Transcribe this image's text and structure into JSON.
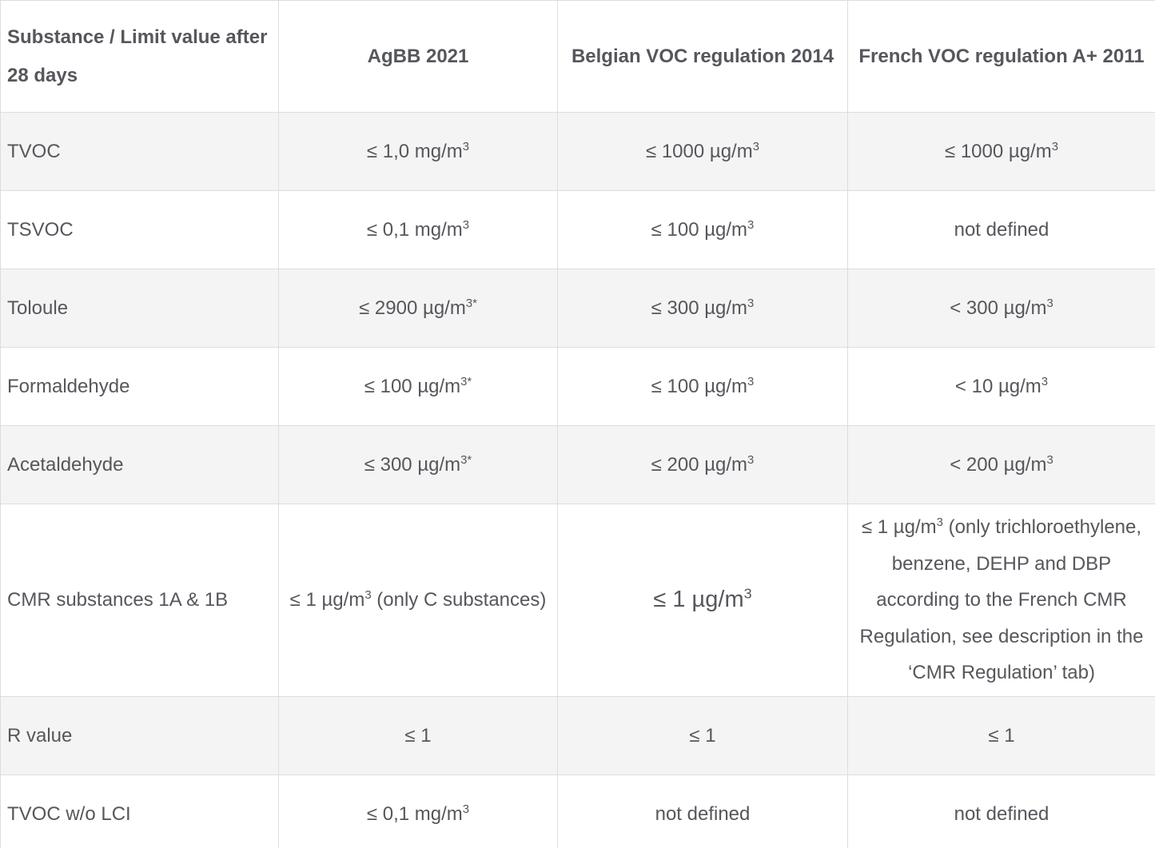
{
  "table": {
    "columns": [
      {
        "label": "Substance / Limit value after 28 days"
      },
      {
        "label": "AgBB 2021"
      },
      {
        "label": "Belgian VOC regulation 2014"
      },
      {
        "label": "French VOC regulation A+ 2011"
      }
    ],
    "rows": [
      {
        "substance": "TVOC",
        "agbb": "≤ 1,0 mg/m^{3}",
        "belgian": "≤ 1000 µg/m^{3}",
        "french": "≤ 1000 µg/m^{3}"
      },
      {
        "substance": "TSVOC",
        "agbb": "≤ 0,1 mg/m^{3}",
        "belgian": "≤ 100 µg/m^{3}",
        "french": "not defined"
      },
      {
        "substance": "Toloule",
        "agbb": "≤ 2900 µg/m^{3*}",
        "belgian": "≤ 300 µg/m^{3}",
        "french": "< 300 µg/m^{3}"
      },
      {
        "substance": "Formaldehyde",
        "agbb": "≤ 100 µg/m^{3*}",
        "belgian": "≤ 100 µg/m^{3}",
        "french": "< 10 µg/m^{3}"
      },
      {
        "substance": "Acetaldehyde",
        "agbb": "≤ 300 µg/m^{3*}",
        "belgian": "≤ 200 µg/m^{3}",
        "french": "< 200 µg/m^{3}"
      },
      {
        "substance": "CMR substances 1A & 1B",
        "agbb": "≤ 1 µg/m^{3} (only C substances)",
        "belgian": "≤ 1 µg/m^{3}",
        "french": "≤ 1 µg/m^{3} (only trichloroethylene, benzene, DEHP and DBP according to the French CMR Regulation, see description in the ‘CMR Regulation’ tab)"
      },
      {
        "substance": "R value",
        "agbb": "≤ 1",
        "belgian": "≤ 1",
        "french": "≤ 1"
      },
      {
        "substance": "TVOC w/o LCI",
        "agbb": "≤ 0,1 mg/m^{3}",
        "belgian": "not defined",
        "french": "not defined"
      }
    ],
    "colors": {
      "text": "#55575c",
      "border": "#dddddd",
      "row_alt_bg": "#f4f4f4",
      "row_bg": "#ffffff"
    }
  }
}
